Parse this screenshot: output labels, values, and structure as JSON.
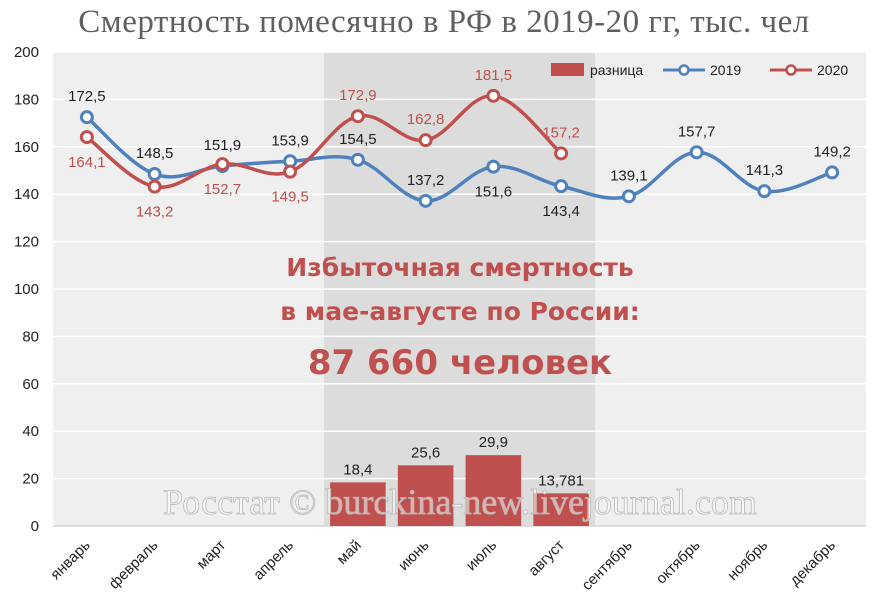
{
  "title": "Смертность помесячно в РФ в 2019-20 гг, тыс. чел",
  "chart_data": {
    "type": "line",
    "categories": [
      "январь",
      "февраль",
      "март",
      "апрель",
      "май",
      "июнь",
      "июль",
      "август",
      "сентябрь",
      "октябрь",
      "ноябрь",
      "декабрь"
    ],
    "ylim": [
      0,
      200
    ],
    "yticks": [
      0,
      20,
      40,
      60,
      80,
      100,
      120,
      140,
      160,
      180,
      200
    ],
    "grid": true,
    "legend_position": "top-right",
    "highlight_months": [
      "май",
      "август"
    ],
    "series": [
      {
        "name": "разница",
        "type": "bar",
        "color": "#c0504d",
        "values": [
          null,
          null,
          null,
          null,
          18.4,
          25.6,
          29.9,
          13.781,
          null,
          null,
          null,
          null
        ],
        "labels": [
          "",
          "",
          "",
          "",
          "18,4",
          "25,6",
          "29,9",
          "13,781",
          "",
          "",
          "",
          ""
        ]
      },
      {
        "name": "2019",
        "type": "line",
        "color": "#4f81bd",
        "values": [
          172.5,
          148.5,
          151.9,
          153.9,
          154.5,
          137.2,
          151.6,
          143.4,
          139.1,
          157.7,
          141.3,
          149.2
        ],
        "labels": [
          "172,5",
          "148,5",
          "151,9",
          "153,9",
          "154,5",
          "137,2",
          "151,6",
          "143,4",
          "139,1",
          "157,7",
          "141,3",
          "149,2"
        ]
      },
      {
        "name": "2020",
        "type": "line",
        "color": "#c0504d",
        "values": [
          164.1,
          143.2,
          152.7,
          149.5,
          172.9,
          162.8,
          181.5,
          157.2,
          null,
          null,
          null,
          null
        ],
        "labels": [
          "164,1",
          "143,2",
          "152,7",
          "149,5",
          "172,9",
          "162,8",
          "181,5",
          "157,2",
          "",
          "",
          "",
          ""
        ]
      }
    ],
    "annotation": [
      "Избыточная смертность",
      "в мае-августе по России:",
      "87 660 человек"
    ],
    "watermark": "Росстат © burckina-new.livejournal.com"
  }
}
